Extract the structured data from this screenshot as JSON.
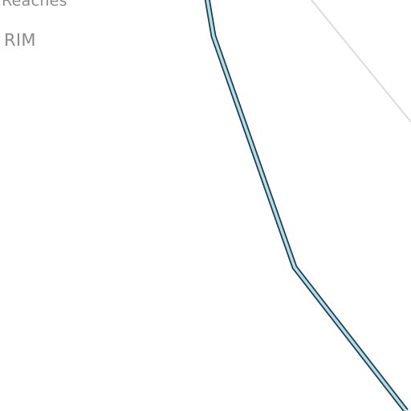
{
  "map": {
    "labels": {
      "reaches": "Reaches",
      "rim": "RIM"
    },
    "colors": {
      "background": "#ffffff",
      "label_text": "#8a8a8a",
      "river_fill": "#a6e0f2",
      "river_outline": "#2b3a3f",
      "boundary_line": "#dcdcdc"
    },
    "features": [
      "river-line",
      "boundary-line"
    ]
  }
}
